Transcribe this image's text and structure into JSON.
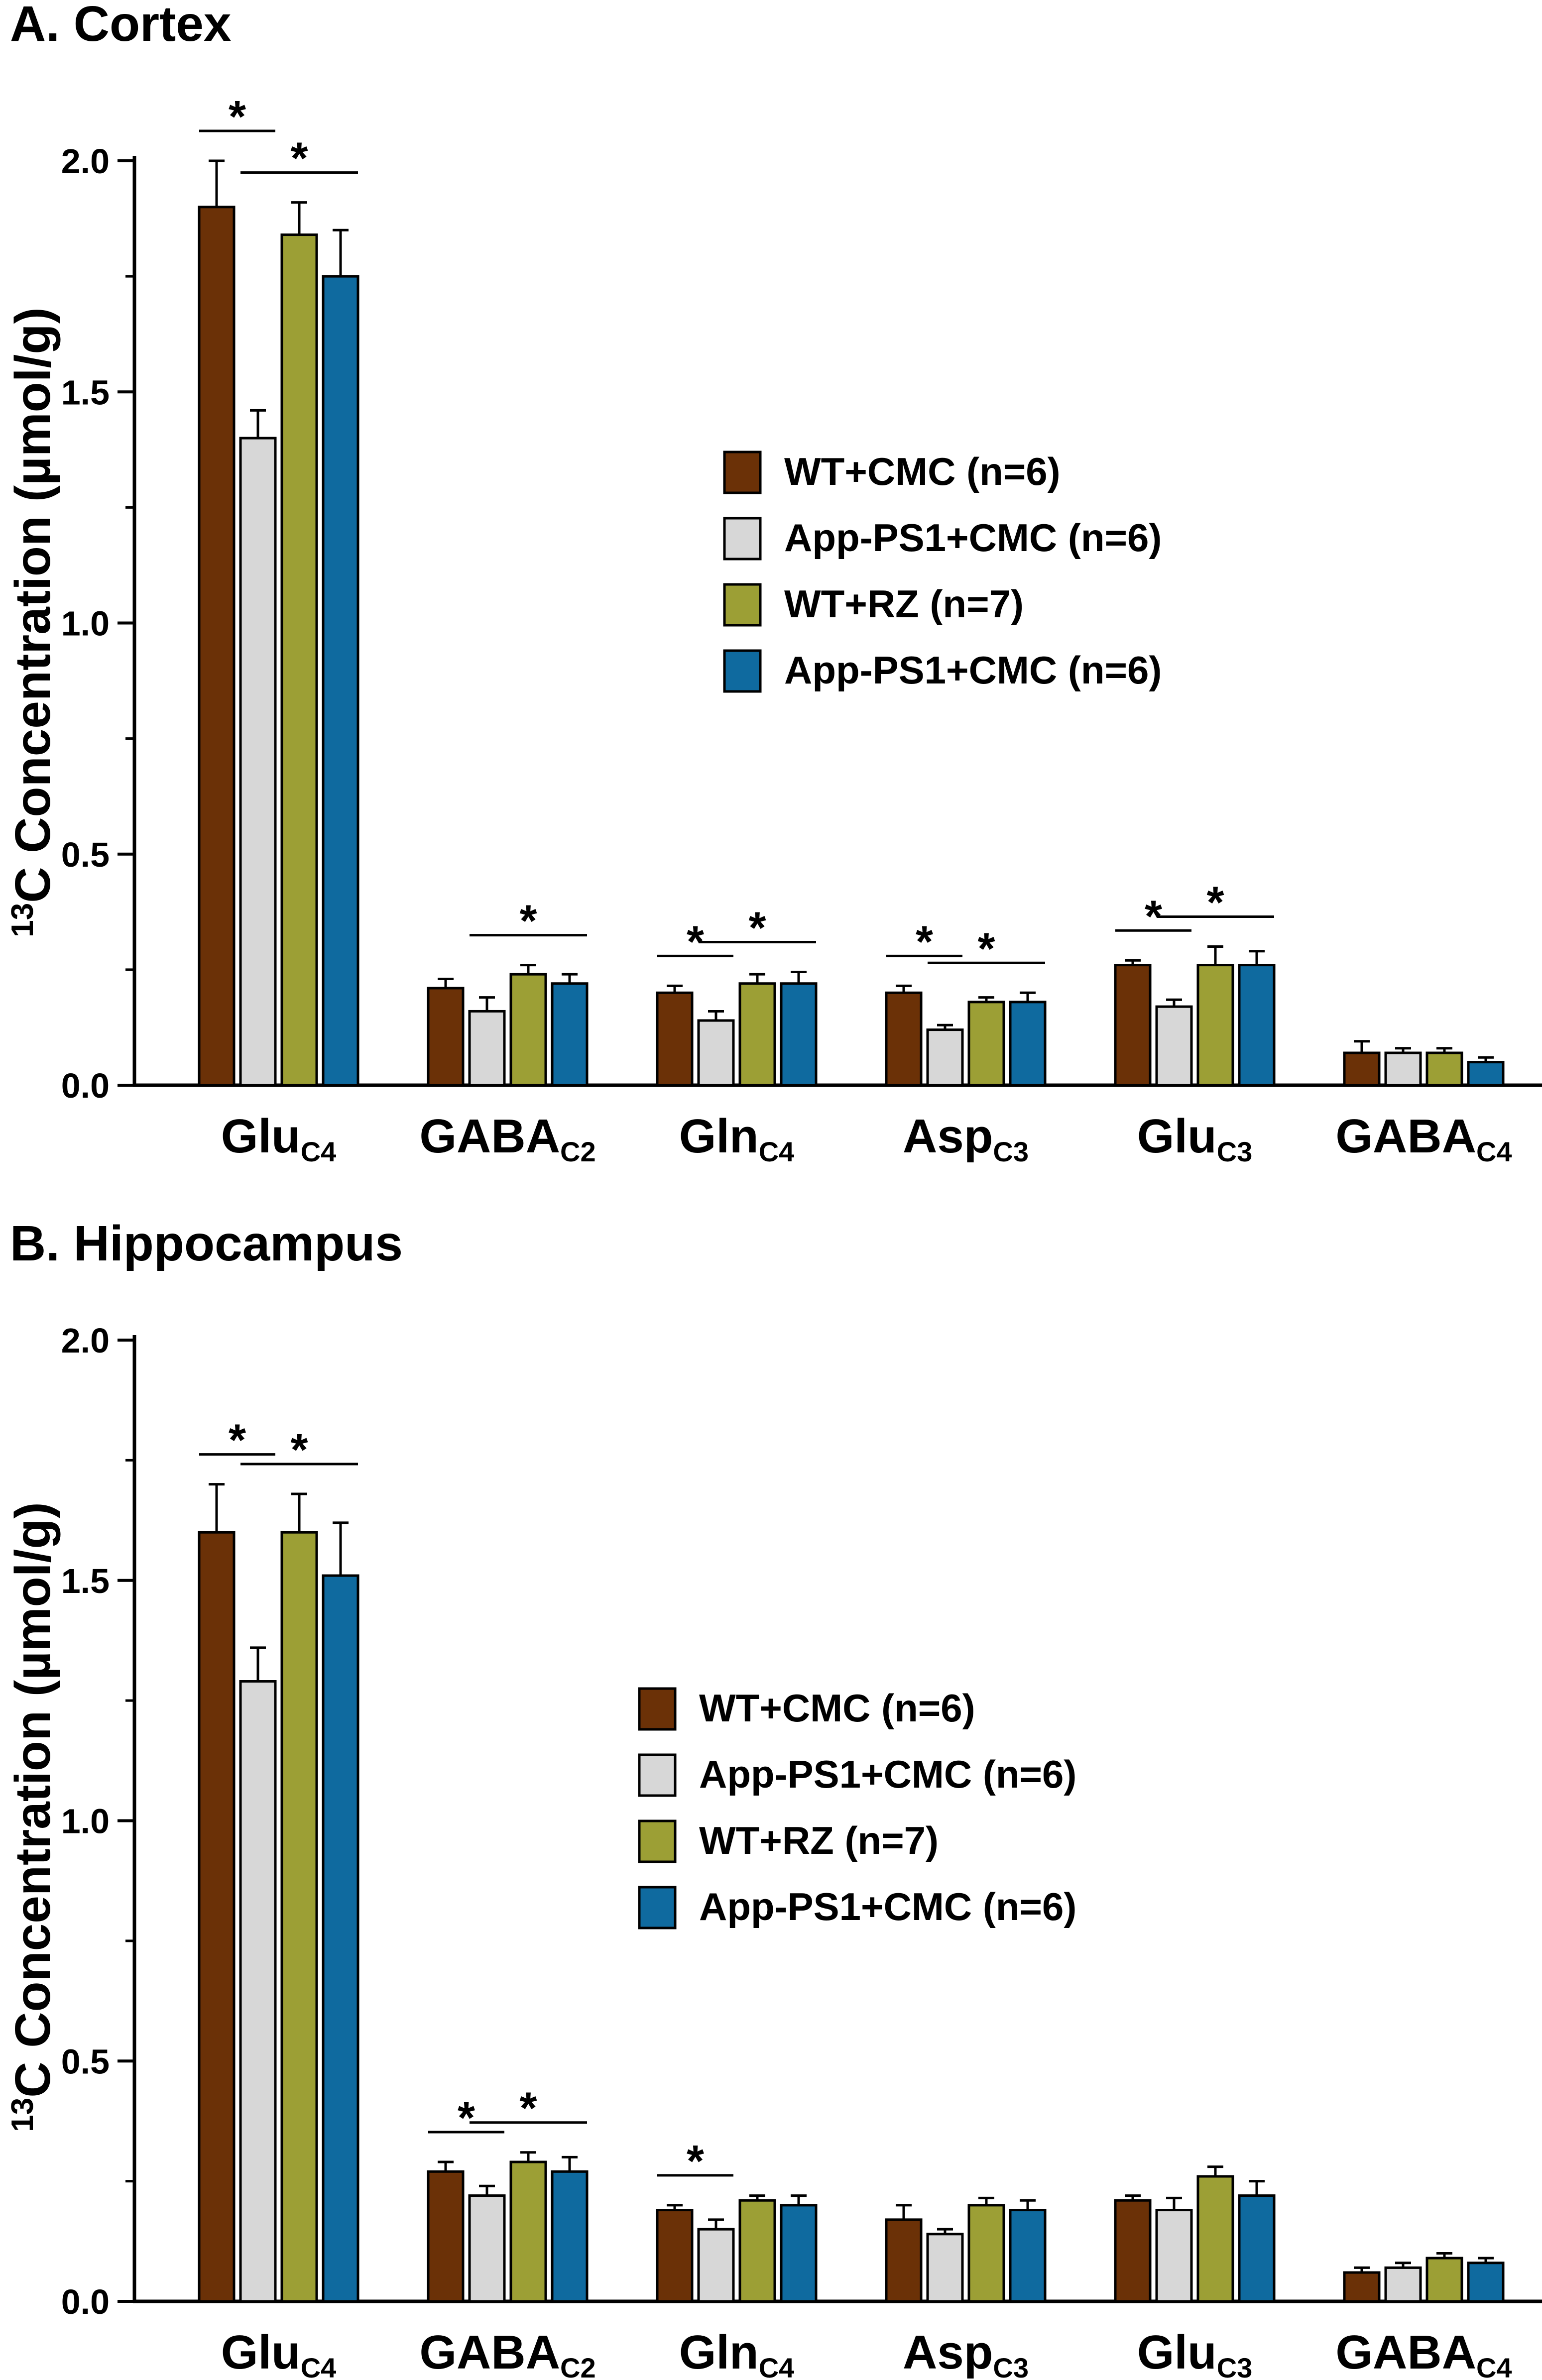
{
  "colors": {
    "series": [
      "#6b3107",
      "#d7d7d7",
      "#9c9f35",
      "#0f6a9f"
    ],
    "stroke": "#000000"
  },
  "chart_data": [
    {
      "panel": "A",
      "title": "A. Cortex",
      "type": "bar",
      "ylabel_super": "13",
      "ylabel": "C Concentration (µmol/g)",
      "ylim": [
        0,
        2.0
      ],
      "yticks": [
        "0.0",
        "0.5",
        "1.0",
        "1.5",
        "2.0"
      ],
      "grid": false,
      "legend_position": "center-right",
      "categories": [
        {
          "name": "Glu",
          "sub": "C4"
        },
        {
          "name": "GABA",
          "sub": "C2"
        },
        {
          "name": "Gln",
          "sub": "C4"
        },
        {
          "name": "Asp",
          "sub": "C3"
        },
        {
          "name": "Glu",
          "sub": "C3"
        },
        {
          "name": "GABA",
          "sub": "C4"
        }
      ],
      "series": [
        {
          "name": "WT+CMC (n=6)",
          "values": [
            1.9,
            0.21,
            0.2,
            0.2,
            0.26,
            0.07
          ],
          "errors": [
            0.1,
            0.02,
            0.015,
            0.015,
            0.01,
            0.025
          ]
        },
        {
          "name": "App-PS1+CMC (n=6)",
          "values": [
            1.4,
            0.16,
            0.14,
            0.12,
            0.17,
            0.07
          ],
          "errors": [
            0.06,
            0.03,
            0.02,
            0.01,
            0.015,
            0.01
          ]
        },
        {
          "name": "WT+RZ (n=7)",
          "values": [
            1.84,
            0.24,
            0.22,
            0.18,
            0.26,
            0.07
          ],
          "errors": [
            0.07,
            0.02,
            0.02,
            0.01,
            0.04,
            0.01
          ]
        },
        {
          "name": "App-PS1+CMC (n=6)",
          "values": [
            1.75,
            0.22,
            0.22,
            0.18,
            0.26,
            0.05
          ],
          "errors": [
            0.1,
            0.02,
            0.025,
            0.02,
            0.03,
            0.01
          ]
        }
      ],
      "significance": [
        {
          "category": 0,
          "from": 0,
          "to": 1,
          "label": "*"
        },
        {
          "category": 0,
          "from": 1,
          "to": 3,
          "label": "*"
        },
        {
          "category": 1,
          "from": 1,
          "to": 3,
          "label": "*"
        },
        {
          "category": 2,
          "from": 0,
          "to": 1,
          "label": "*"
        },
        {
          "category": 2,
          "from": 1,
          "to": 3,
          "label": "*"
        },
        {
          "category": 3,
          "from": 0,
          "to": 1,
          "label": "*"
        },
        {
          "category": 3,
          "from": 1,
          "to": 3,
          "label": "*"
        },
        {
          "category": 4,
          "from": 0,
          "to": 1,
          "label": "*"
        },
        {
          "category": 4,
          "from": 1,
          "to": 3,
          "label": "*"
        }
      ]
    },
    {
      "panel": "B",
      "title": "B. Hippocampus",
      "type": "bar",
      "ylabel_super": "13",
      "ylabel": "C Concentration (µmol/g)",
      "ylim": [
        0,
        2.0
      ],
      "yticks": [
        "0.0",
        "0.5",
        "1.0",
        "1.5",
        "2.0"
      ],
      "grid": false,
      "legend_position": "center-right",
      "categories": [
        {
          "name": "Glu",
          "sub": "C4"
        },
        {
          "name": "GABA",
          "sub": "C2"
        },
        {
          "name": "Gln",
          "sub": "C4"
        },
        {
          "name": "Asp",
          "sub": "C3"
        },
        {
          "name": "Glu",
          "sub": "C3"
        },
        {
          "name": "GABA",
          "sub": "C4"
        }
      ],
      "series": [
        {
          "name": "WT+CMC (n=6)",
          "values": [
            1.6,
            0.27,
            0.19,
            0.17,
            0.21,
            0.06
          ],
          "errors": [
            0.1,
            0.02,
            0.01,
            0.03,
            0.01,
            0.01
          ]
        },
        {
          "name": "App-PS1+CMC (n=6)",
          "values": [
            1.29,
            0.22,
            0.15,
            0.14,
            0.19,
            0.07
          ],
          "errors": [
            0.07,
            0.02,
            0.02,
            0.01,
            0.025,
            0.01
          ]
        },
        {
          "name": "WT+RZ (n=7)",
          "values": [
            1.6,
            0.29,
            0.21,
            0.2,
            0.26,
            0.09
          ],
          "errors": [
            0.08,
            0.02,
            0.01,
            0.015,
            0.02,
            0.01
          ]
        },
        {
          "name": "App-PS1+CMC (n=6)",
          "values": [
            1.51,
            0.27,
            0.2,
            0.19,
            0.22,
            0.08
          ],
          "errors": [
            0.11,
            0.03,
            0.02,
            0.02,
            0.03,
            0.01
          ]
        }
      ],
      "significance": [
        {
          "category": 0,
          "from": 0,
          "to": 1,
          "label": "*"
        },
        {
          "category": 0,
          "from": 1,
          "to": 3,
          "label": "*"
        },
        {
          "category": 1,
          "from": 0,
          "to": 1,
          "label": "*"
        },
        {
          "category": 1,
          "from": 1,
          "to": 3,
          "label": "*"
        },
        {
          "category": 2,
          "from": 0,
          "to": 1,
          "label": "*"
        }
      ]
    }
  ]
}
